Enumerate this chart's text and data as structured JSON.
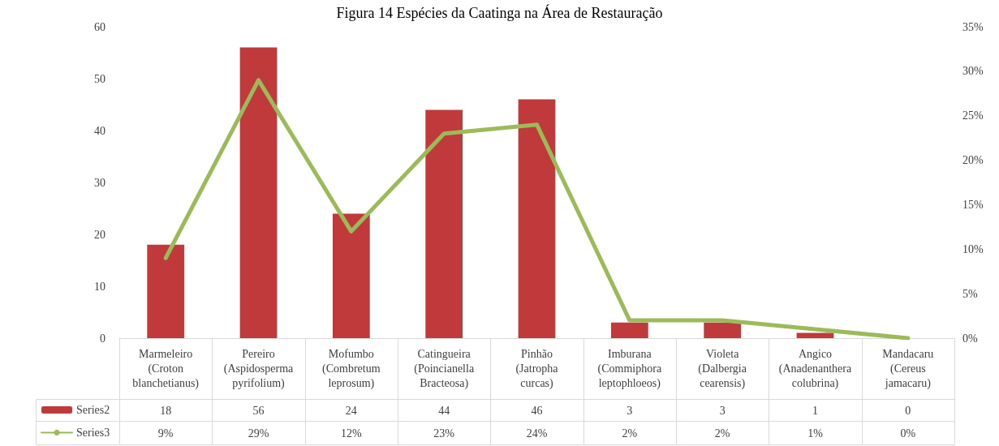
{
  "chart_data": {
    "type": "bar",
    "title": "Figura 14 Espécies da Caatinga na Área de Restauração",
    "categories": [
      "Marmeleiro (Croton blanchetianus)",
      "Pereiro (Aspidosperma pyrifolium)",
      "Mofumbo (Combretum leprosum)",
      "Catingueira (Poincianella Bracteosa)",
      "Pinhão (Jatropha curcas)",
      "Imburana (Commiphora leptophloeos)",
      "Violeta (Dalbergia cearensis)",
      "Angico (Anadenanthera colubrina)",
      "Mandacaru (Cereus jamacaru)"
    ],
    "series": [
      {
        "name": "Series2",
        "color": "#c0393b",
        "values": [
          18,
          56,
          24,
          44,
          46,
          3,
          3,
          1,
          0
        ],
        "value_labels": [
          "18",
          "56",
          "24",
          "44",
          "46",
          "3",
          "3",
          "1",
          "0"
        ]
      },
      {
        "name": "Series3",
        "type": "line",
        "axis": "y2",
        "color": "#9bbb59",
        "values": [
          9,
          29,
          12,
          23,
          24,
          2,
          2,
          1,
          0
        ],
        "value_labels": [
          "9%",
          "29%",
          "12%",
          "23%",
          "24%",
          "2%",
          "2%",
          "1%",
          "0%"
        ]
      }
    ],
    "ylim": [
      0,
      60
    ],
    "yticks": [
      0,
      10,
      20,
      30,
      40,
      50,
      60
    ],
    "y2lim": [
      0,
      35
    ],
    "y2ticks": [
      {
        "value": 0,
        "label": "0%"
      },
      {
        "value": 5,
        "label": "5%"
      },
      {
        "value": 10,
        "label": "10%"
      },
      {
        "value": 15,
        "label": "15%"
      },
      {
        "value": 20,
        "label": "20%"
      },
      {
        "value": 25,
        "label": "25%"
      },
      {
        "value": 30,
        "label": "30%"
      },
      {
        "value": 35,
        "label": "35%"
      }
    ],
    "legend": "bottom left",
    "marker": "none"
  }
}
